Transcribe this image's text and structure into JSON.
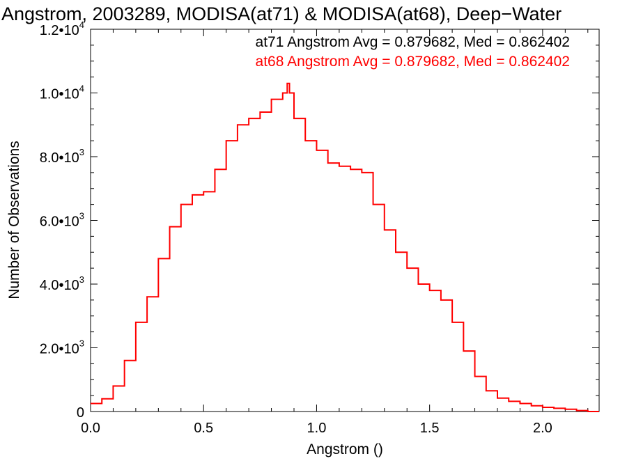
{
  "chart_data": {
    "type": "line",
    "title": "Angstrom, 2003289, MODISA(at71) & MODISA(at68), Deep−Water",
    "xlabel": "Angstrom ()",
    "ylabel": "Number of Observations",
    "xlim": [
      0.0,
      2.25
    ],
    "ylim": [
      0,
      12000
    ],
    "x_ticks": [
      {
        "value": 0.0,
        "label": "0.0"
      },
      {
        "value": 0.5,
        "label": "0.5"
      },
      {
        "value": 1.0,
        "label": "1.0"
      },
      {
        "value": 1.5,
        "label": "1.5"
      },
      {
        "value": 2.0,
        "label": "2.0"
      }
    ],
    "y_ticks": [
      {
        "value": 0,
        "mant": "0",
        "exp": ""
      },
      {
        "value": 2000,
        "mant": "2.0•10",
        "exp": "3"
      },
      {
        "value": 4000,
        "mant": "4.0•10",
        "exp": "3"
      },
      {
        "value": 6000,
        "mant": "6.0•10",
        "exp": "3"
      },
      {
        "value": 8000,
        "mant": "8.0•10",
        "exp": "3"
      },
      {
        "value": 10000,
        "mant": "1.0•10",
        "exp": "4"
      },
      {
        "value": 12000,
        "mant": "1.2•10",
        "exp": "4"
      }
    ],
    "stats": [
      {
        "text": "at71 Angstrom Avg = 0.879682, Med = 0.862402",
        "color": "#000000"
      },
      {
        "text": "at68 Angstrom Avg = 0.879682, Med = 0.862402",
        "color": "#ff0000"
      }
    ],
    "series": [
      {
        "color": "#ff0000",
        "style": "step",
        "x": [
          0.0,
          0.05,
          0.1,
          0.15,
          0.2,
          0.25,
          0.3,
          0.35,
          0.4,
          0.45,
          0.5,
          0.55,
          0.6,
          0.65,
          0.7,
          0.75,
          0.8,
          0.85,
          0.87,
          0.88,
          0.9,
          0.95,
          1.0,
          1.05,
          1.1,
          1.15,
          1.2,
          1.25,
          1.3,
          1.35,
          1.4,
          1.45,
          1.5,
          1.55,
          1.6,
          1.65,
          1.7,
          1.75,
          1.8,
          1.85,
          1.9,
          1.95,
          2.0,
          2.05,
          2.1,
          2.15,
          2.2,
          2.25
        ],
        "values": [
          250,
          400,
          800,
          1600,
          2800,
          3600,
          4800,
          5800,
          6500,
          6800,
          6900,
          7600,
          8500,
          9000,
          9200,
          9400,
          9800,
          10000,
          10300,
          10000,
          9200,
          8500,
          8200,
          7800,
          7700,
          7600,
          7500,
          6500,
          5700,
          5000,
          4500,
          4000,
          3800,
          3500,
          2800,
          1900,
          1100,
          650,
          420,
          320,
          250,
          180,
          130,
          100,
          70,
          30,
          0,
          0
        ]
      }
    ]
  }
}
